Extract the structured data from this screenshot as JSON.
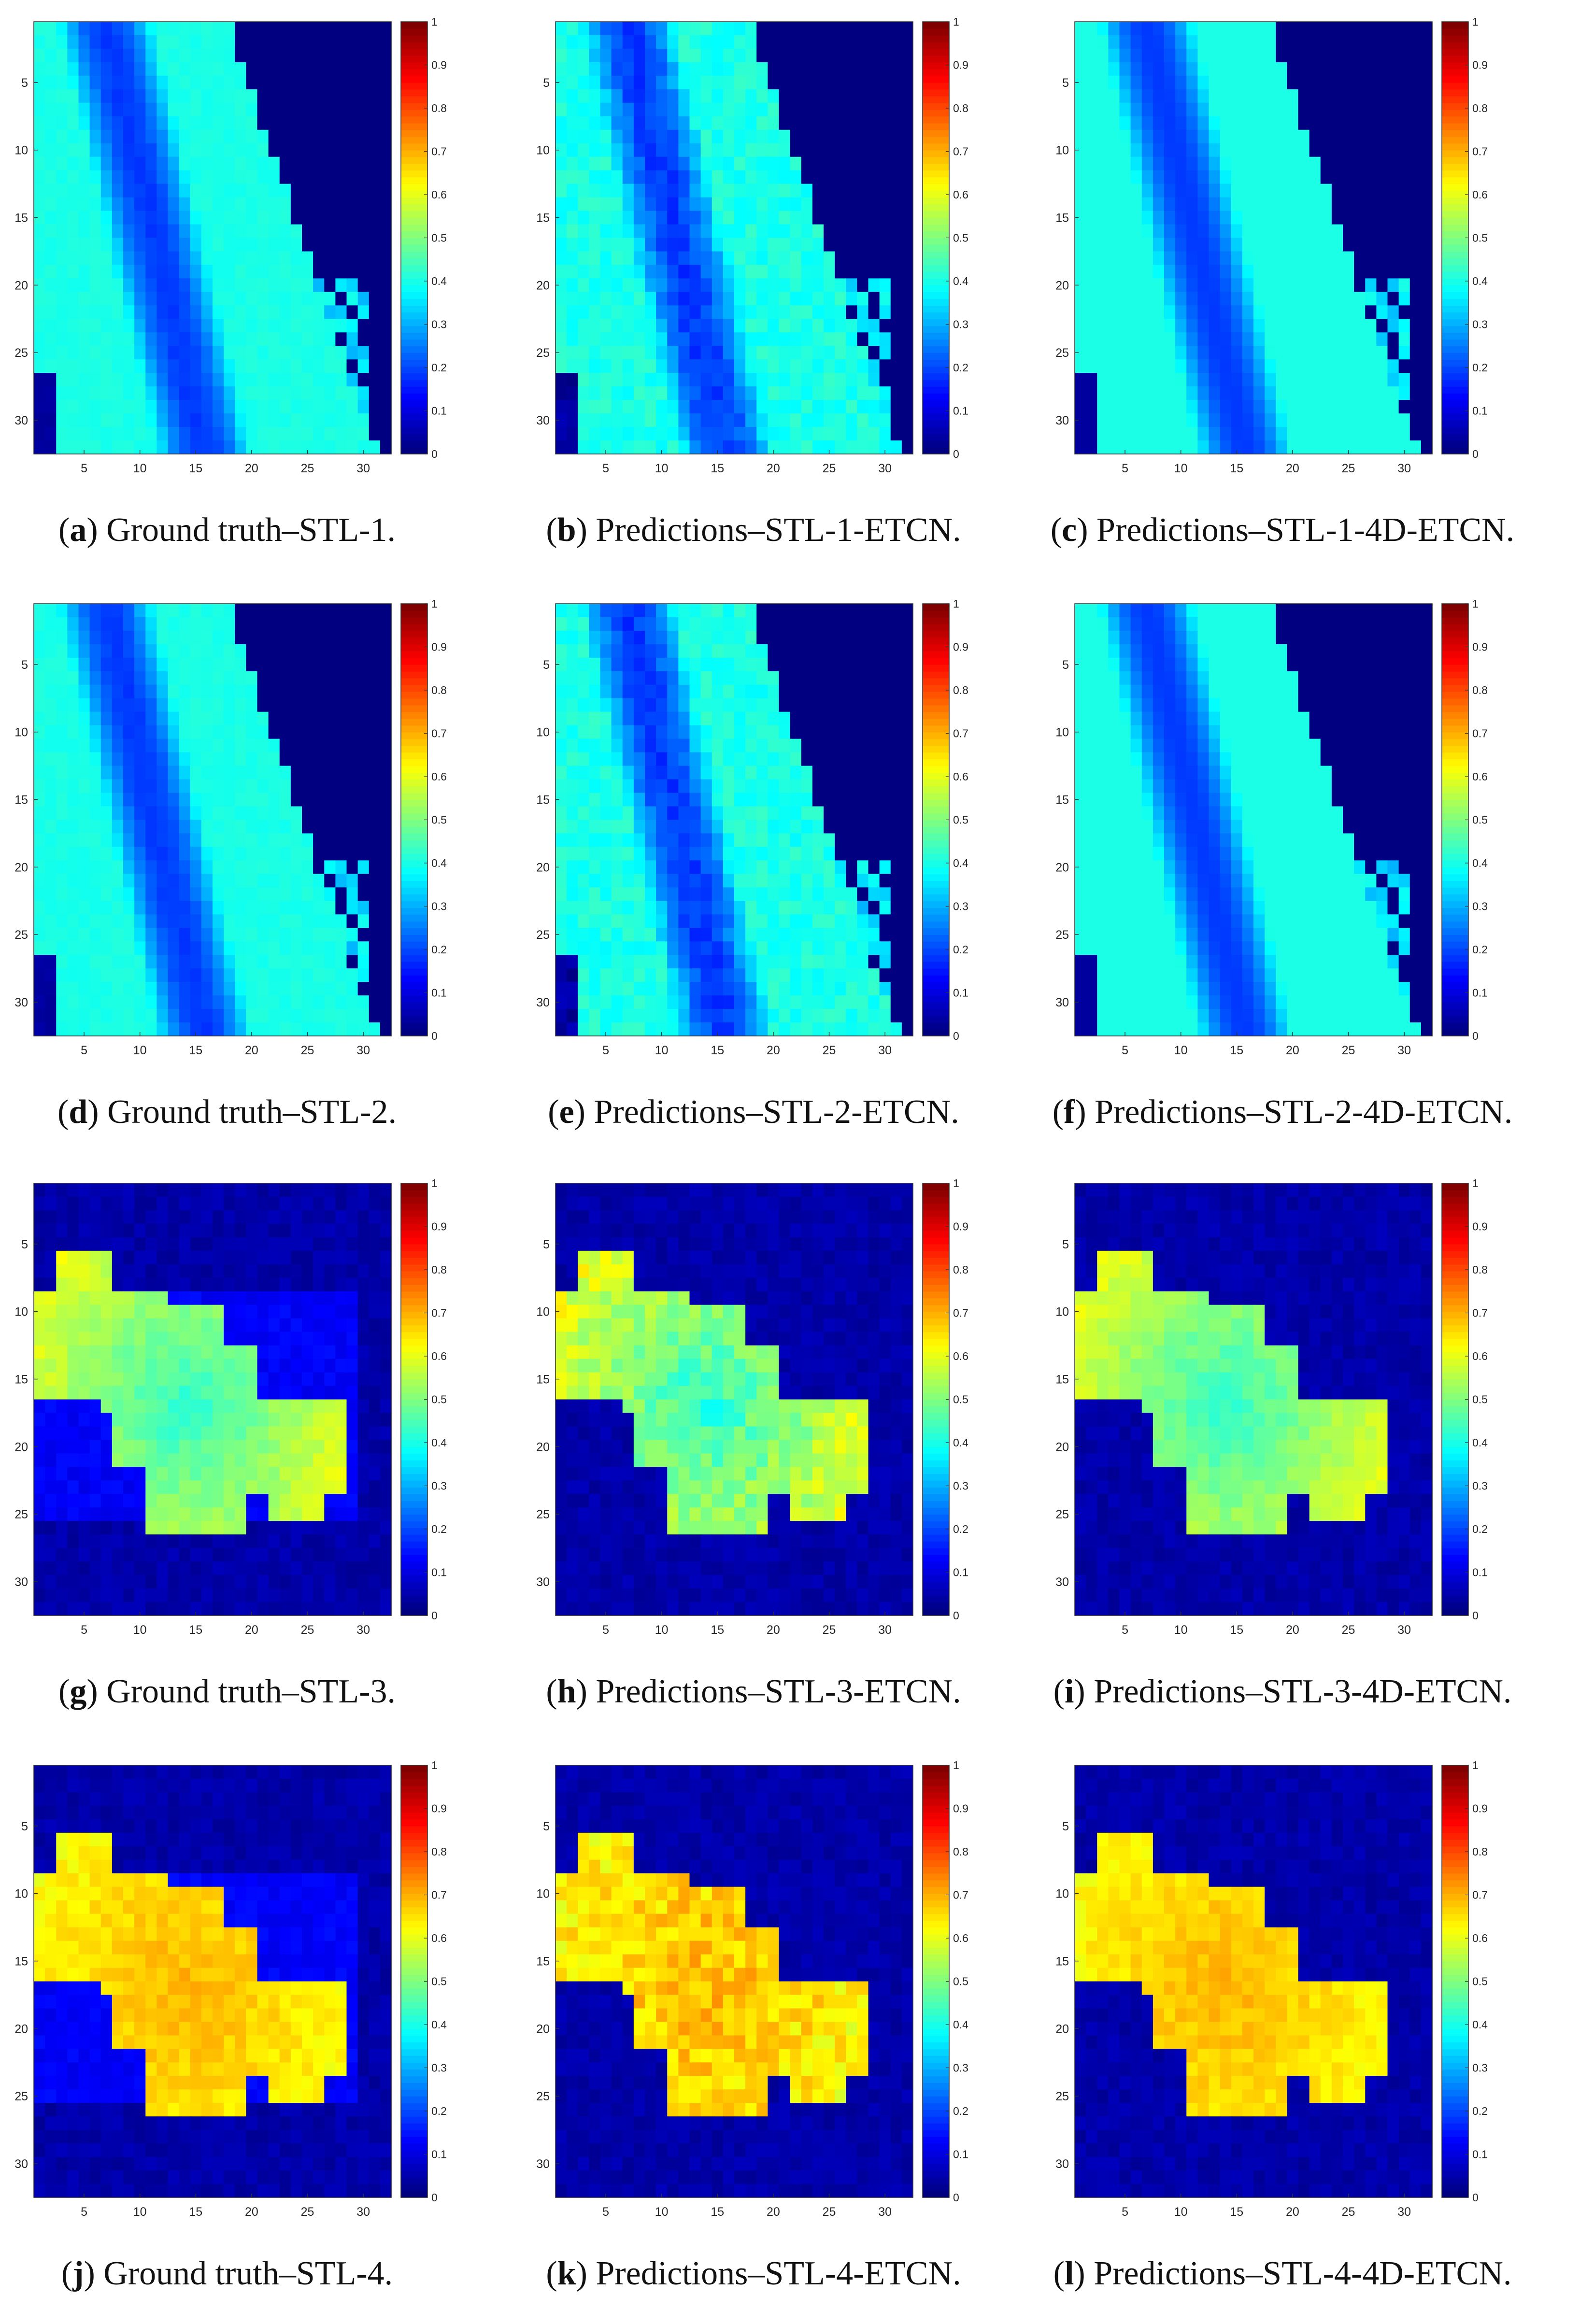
{
  "colormap": "jet",
  "chart_data": [
    {
      "id": "a",
      "type": "heatmap",
      "dataset": "STL-1",
      "source": "Ground truth",
      "pattern": "band",
      "style": "truth",
      "size": [
        32,
        32
      ],
      "zlim": [
        0,
        1
      ],
      "x_ticks": [
        5,
        10,
        15,
        20,
        25,
        30
      ],
      "y_ticks": [
        5,
        10,
        15,
        20,
        25,
        30
      ],
      "colorbar_ticks": [
        0,
        0.1,
        0.2,
        0.3,
        0.4,
        0.5,
        0.6,
        0.7,
        0.8,
        0.9,
        1
      ],
      "colorbar_labels": [
        "0",
        "0.1",
        "0.2",
        "0.3",
        "0.4",
        "0.5",
        "0.6",
        "0.7",
        "0.8",
        "0.9",
        "1"
      ],
      "caption_letter": "a",
      "caption_text": "Ground truth–STL-1."
    },
    {
      "id": "b",
      "type": "heatmap",
      "dataset": "STL-1",
      "source": "Predictions",
      "model": "ETCN",
      "pattern": "band",
      "style": "etcn",
      "size": [
        32,
        32
      ],
      "zlim": [
        0,
        1
      ],
      "x_ticks": [
        5,
        10,
        15,
        20,
        25,
        30
      ],
      "y_ticks": [
        5,
        10,
        15,
        20,
        25,
        30
      ],
      "colorbar_ticks": [
        0,
        0.1,
        0.2,
        0.3,
        0.4,
        0.5,
        0.6,
        0.7,
        0.8,
        0.9,
        1
      ],
      "colorbar_labels": [
        "0",
        "0.1",
        "0.2",
        "0.3",
        "0.4",
        "0.5",
        "0.6",
        "0.7",
        "0.8",
        "0.9",
        "1"
      ],
      "caption_letter": "b",
      "caption_text": "Predictions–STL-1-ETCN."
    },
    {
      "id": "c",
      "type": "heatmap",
      "dataset": "STL-1",
      "source": "Predictions",
      "model": "4D-ETCN",
      "pattern": "band",
      "style": "4d",
      "size": [
        32,
        32
      ],
      "zlim": [
        0,
        1
      ],
      "x_ticks": [
        5,
        10,
        15,
        20,
        25,
        30
      ],
      "y_ticks": [
        5,
        10,
        15,
        20,
        25,
        30
      ],
      "colorbar_ticks": [
        0,
        0.1,
        0.2,
        0.3,
        0.4,
        0.5,
        0.6,
        0.7,
        0.8,
        0.9,
        1
      ],
      "colorbar_labels": [
        "0",
        "0.1",
        "0.2",
        "0.3",
        "0.4",
        "0.5",
        "0.6",
        "0.7",
        "0.8",
        "0.9",
        "1"
      ],
      "caption_letter": "c",
      "caption_text": "Predictions–STL-1-4D-ETCN."
    },
    {
      "id": "d",
      "type": "heatmap",
      "dataset": "STL-2",
      "source": "Ground truth",
      "pattern": "band",
      "style": "truth",
      "size": [
        32,
        32
      ],
      "zlim": [
        0,
        1
      ],
      "x_ticks": [
        5,
        10,
        15,
        20,
        25,
        30
      ],
      "y_ticks": [
        5,
        10,
        15,
        20,
        25,
        30
      ],
      "colorbar_ticks": [
        0,
        0.1,
        0.2,
        0.3,
        0.4,
        0.5,
        0.6,
        0.7,
        0.8,
        0.9,
        1
      ],
      "colorbar_labels": [
        "0",
        "0.1",
        "0.2",
        "0.3",
        "0.4",
        "0.5",
        "0.6",
        "0.7",
        "0.8",
        "0.9",
        "1"
      ],
      "caption_letter": "d",
      "caption_text": "Ground truth–STL-2."
    },
    {
      "id": "e",
      "type": "heatmap",
      "dataset": "STL-2",
      "source": "Predictions",
      "model": "ETCN",
      "pattern": "band",
      "style": "etcn",
      "size": [
        32,
        32
      ],
      "zlim": [
        0,
        1
      ],
      "x_ticks": [
        5,
        10,
        15,
        20,
        25,
        30
      ],
      "y_ticks": [
        5,
        10,
        15,
        20,
        25,
        30
      ],
      "colorbar_ticks": [
        0,
        0.1,
        0.2,
        0.3,
        0.4,
        0.5,
        0.6,
        0.7,
        0.8,
        0.9,
        1
      ],
      "colorbar_labels": [
        "0",
        "0.1",
        "0.2",
        "0.3",
        "0.4",
        "0.5",
        "0.6",
        "0.7",
        "0.8",
        "0.9",
        "1"
      ],
      "caption_letter": "e",
      "caption_text": "Predictions–STL-2-ETCN."
    },
    {
      "id": "f",
      "type": "heatmap",
      "dataset": "STL-2",
      "source": "Predictions",
      "model": "4D-ETCN",
      "pattern": "band",
      "style": "4d",
      "size": [
        32,
        32
      ],
      "zlim": [
        0,
        1
      ],
      "x_ticks": [
        5,
        10,
        15,
        20,
        25,
        30
      ],
      "y_ticks": [
        5,
        10,
        15,
        20,
        25,
        30
      ],
      "colorbar_ticks": [
        0,
        0.1,
        0.2,
        0.3,
        0.4,
        0.5,
        0.6,
        0.7,
        0.8,
        0.9,
        1
      ],
      "colorbar_labels": [
        "0",
        "0.1",
        "0.2",
        "0.3",
        "0.4",
        "0.5",
        "0.6",
        "0.7",
        "0.8",
        "0.9",
        "1"
      ],
      "caption_letter": "f",
      "caption_text": "Predictions–STL-2-4D-ETCN."
    },
    {
      "id": "g",
      "type": "heatmap",
      "dataset": "STL-3",
      "source": "Ground truth",
      "pattern": "blob",
      "style": "truth",
      "size": [
        32,
        32
      ],
      "zlim": [
        0,
        1
      ],
      "x_ticks": [
        5,
        10,
        15,
        20,
        25,
        30
      ],
      "y_ticks": [
        5,
        10,
        15,
        20,
        25,
        30
      ],
      "colorbar_ticks": [
        0,
        0.1,
        0.2,
        0.3,
        0.4,
        0.5,
        0.6,
        0.7,
        0.8,
        0.9,
        1
      ],
      "colorbar_labels": [
        "0",
        "0.1",
        "0.2",
        "0.3",
        "0.4",
        "0.5",
        "0.6",
        "0.7",
        "0.8",
        "0.9",
        "1"
      ],
      "caption_letter": "g",
      "caption_text": "Ground truth–STL-3."
    },
    {
      "id": "h",
      "type": "heatmap",
      "dataset": "STL-3",
      "source": "Predictions",
      "model": "ETCN",
      "pattern": "blob",
      "style": "etcn",
      "size": [
        32,
        32
      ],
      "zlim": [
        0,
        1
      ],
      "x_ticks": [
        5,
        10,
        15,
        20,
        25,
        30
      ],
      "y_ticks": [
        5,
        10,
        15,
        20,
        25,
        30
      ],
      "colorbar_ticks": [
        0,
        0.1,
        0.2,
        0.3,
        0.4,
        0.5,
        0.6,
        0.7,
        0.8,
        0.9,
        1
      ],
      "colorbar_labels": [
        "0",
        "0.1",
        "0.2",
        "0.3",
        "0.4",
        "0.5",
        "0.6",
        "0.7",
        "0.8",
        "0.9",
        "1"
      ],
      "caption_letter": "h",
      "caption_text": "Predictions–STL-3-ETCN."
    },
    {
      "id": "i",
      "type": "heatmap",
      "dataset": "STL-3",
      "source": "Predictions",
      "model": "4D-ETCN",
      "pattern": "blob",
      "style": "4d",
      "size": [
        32,
        32
      ],
      "zlim": [
        0,
        1
      ],
      "x_ticks": [
        5,
        10,
        15,
        20,
        25,
        30
      ],
      "y_ticks": [
        5,
        10,
        15,
        20,
        25,
        30
      ],
      "colorbar_ticks": [
        0,
        0.1,
        0.2,
        0.3,
        0.4,
        0.5,
        0.6,
        0.7,
        0.8,
        0.9,
        1
      ],
      "colorbar_labels": [
        "0",
        "0.1",
        "0.2",
        "0.3",
        "0.4",
        "0.5",
        "0.6",
        "0.7",
        "0.8",
        "0.9",
        "1"
      ],
      "caption_letter": "i",
      "caption_text": "Predictions–STL-3-4D-ETCN."
    },
    {
      "id": "j",
      "type": "heatmap",
      "dataset": "STL-4",
      "source": "Ground truth",
      "pattern": "blob",
      "style": "truth",
      "size": [
        32,
        32
      ],
      "zlim": [
        0,
        1
      ],
      "x_ticks": [
        5,
        10,
        15,
        20,
        25,
        30
      ],
      "y_ticks": [
        5,
        10,
        15,
        20,
        25,
        30
      ],
      "colorbar_ticks": [
        0,
        0.1,
        0.2,
        0.3,
        0.4,
        0.5,
        0.6,
        0.7,
        0.8,
        0.9,
        1
      ],
      "colorbar_labels": [
        "0",
        "0.1",
        "0.2",
        "0.3",
        "0.4",
        "0.5",
        "0.6",
        "0.7",
        "0.8",
        "0.9",
        "1"
      ],
      "caption_letter": "j",
      "caption_text": "Ground truth–STL-4."
    },
    {
      "id": "k",
      "type": "heatmap",
      "dataset": "STL-4",
      "source": "Predictions",
      "model": "ETCN",
      "pattern": "blob",
      "style": "etcn",
      "size": [
        32,
        32
      ],
      "zlim": [
        0,
        1
      ],
      "x_ticks": [
        5,
        10,
        15,
        20,
        25,
        30
      ],
      "y_ticks": [
        5,
        10,
        15,
        20,
        25,
        30
      ],
      "colorbar_ticks": [
        0,
        0.1,
        0.2,
        0.3,
        0.4,
        0.5,
        0.6,
        0.7,
        0.8,
        0.9,
        1
      ],
      "colorbar_labels": [
        "0",
        "0.1",
        "0.2",
        "0.3",
        "0.4",
        "0.5",
        "0.6",
        "0.7",
        "0.8",
        "0.9",
        "1"
      ],
      "caption_letter": "k",
      "caption_text": "Predictions–STL-4-ETCN."
    },
    {
      "id": "l",
      "type": "heatmap",
      "dataset": "STL-4",
      "source": "Predictions",
      "model": "4D-ETCN",
      "pattern": "blob",
      "style": "4d",
      "size": [
        32,
        32
      ],
      "zlim": [
        0,
        1
      ],
      "x_ticks": [
        5,
        10,
        15,
        20,
        25,
        30
      ],
      "y_ticks": [
        5,
        10,
        15,
        20,
        25,
        30
      ],
      "colorbar_ticks": [
        0,
        0.1,
        0.2,
        0.3,
        0.4,
        0.5,
        0.6,
        0.7,
        0.8,
        0.9,
        1
      ],
      "colorbar_labels": [
        "0",
        "0.1",
        "0.2",
        "0.3",
        "0.4",
        "0.5",
        "0.6",
        "0.7",
        "0.8",
        "0.9",
        "1"
      ],
      "caption_letter": "l",
      "caption_text": "Predictions–STL-4-4D-ETCN."
    }
  ]
}
